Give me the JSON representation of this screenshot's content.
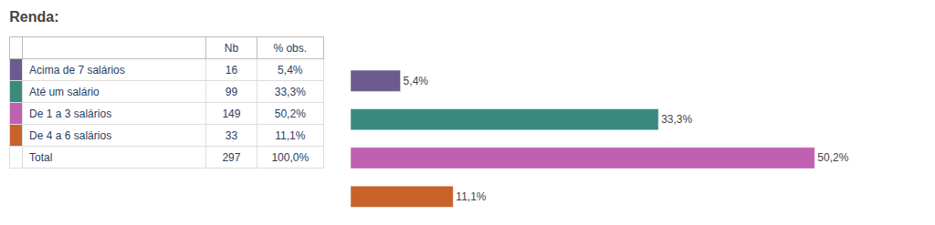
{
  "chart_data": [
    {
      "type": "table",
      "title": "Renda:",
      "categories": [
        "Acima de 7 salários",
        "Até um salário",
        "De 1 a 3 salários",
        "De 4 a 6 salários",
        "Total"
      ],
      "series": [
        {
          "name": "Nb",
          "values": [
            16,
            99,
            149,
            33,
            297
          ]
        },
        {
          "name": "% obs.",
          "values": [
            5.4,
            33.3,
            50.2,
            11.1,
            100.0
          ],
          "value_labels": [
            "5,4%",
            "33,3%",
            "50,2%",
            "11,1%",
            "100,0%"
          ]
        }
      ]
    },
    {
      "type": "bar",
      "orientation": "horizontal",
      "categories": [
        "Acima de 7 salários",
        "Até um salário",
        "De 1 a 3 salários",
        "De 4 a 6 salários"
      ],
      "values": [
        5.4,
        33.3,
        50.2,
        11.1
      ],
      "value_labels": [
        "5,4%",
        "33,3%",
        "50,2%",
        "11,1%"
      ],
      "colors": [
        "#6b5b8e",
        "#3a8a7e",
        "#c060b0",
        "#c8612a"
      ],
      "data_labels": true,
      "tick_labels": false,
      "grid": false,
      "xlim": [
        0,
        60.24
      ]
    }
  ]
}
